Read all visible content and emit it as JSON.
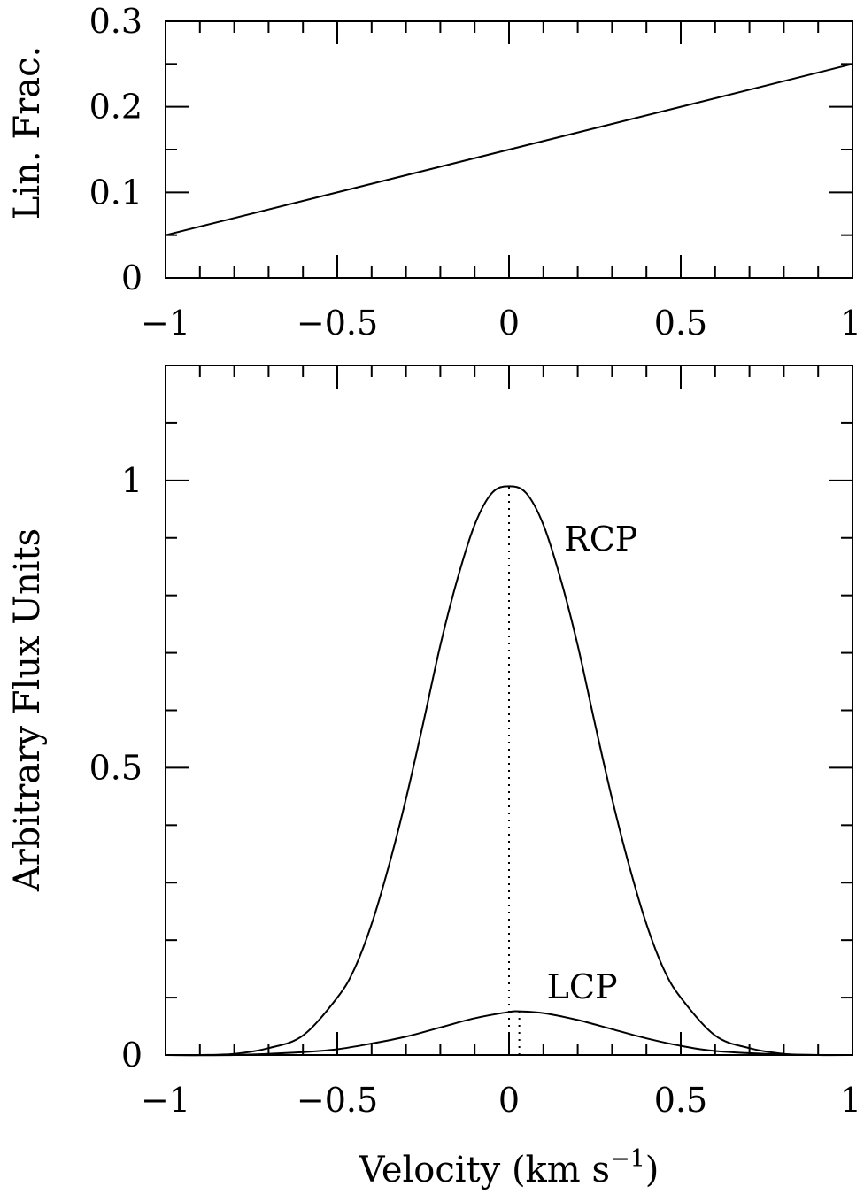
{
  "chart_data": [
    {
      "type": "line",
      "ylabel": "Lin. Frac.",
      "xlabel": "",
      "xlim": [
        -1,
        1
      ],
      "ylim": [
        0,
        0.3
      ],
      "x_ticks": [
        -1,
        -0.5,
        0,
        0.5,
        1
      ],
      "x_tick_labels": [
        "−1",
        "−0.5",
        "0",
        "0.5",
        "1"
      ],
      "y_ticks": [
        0,
        0.1,
        0.2,
        0.3
      ],
      "y_tick_labels": [
        "0",
        "0.1",
        "0.2",
        "0.3"
      ],
      "grid": false,
      "series": [
        {
          "x": [
            -1,
            1
          ],
          "y": [
            0.05,
            0.25
          ],
          "style": "solid",
          "color": "#000000"
        }
      ]
    },
    {
      "type": "line",
      "ylabel": "Arbitrary Flux Units",
      "xlabel": "Velocity (km s",
      "xlabel_superscript": "−1",
      "xlabel_suffix": ")",
      "xlim": [
        -1,
        1
      ],
      "ylim": [
        0,
        1.2
      ],
      "x_ticks": [
        -1,
        -0.5,
        0,
        0.5,
        1
      ],
      "x_tick_labels": [
        "−1",
        "−0.5",
        "0",
        "0.5",
        "1"
      ],
      "y_ticks": [
        0,
        0.5,
        1
      ],
      "y_tick_labels": [
        "0",
        "0.5",
        "1"
      ],
      "grid": false,
      "series": [
        {
          "name": "RCP",
          "x": [
            -1.0,
            -0.9,
            -0.8,
            -0.7,
            -0.6,
            -0.5,
            -0.45,
            -0.4,
            -0.35,
            -0.3,
            -0.25,
            -0.2,
            -0.15,
            -0.1,
            -0.05,
            0.0,
            0.05,
            0.1,
            0.15,
            0.2,
            0.25,
            0.3,
            0.35,
            0.4,
            0.45,
            0.5,
            0.6,
            0.7,
            0.8,
            0.9,
            1.0
          ],
          "y": [
            0.0,
            0.0,
            0.002,
            0.012,
            0.034,
            0.1,
            0.15,
            0.228,
            0.329,
            0.446,
            0.577,
            0.713,
            0.829,
            0.923,
            0.978,
            0.99,
            0.978,
            0.923,
            0.829,
            0.713,
            0.577,
            0.446,
            0.329,
            0.228,
            0.15,
            0.1,
            0.034,
            0.012,
            0.002,
            0.0,
            0.0
          ],
          "style": "solid",
          "color": "#000000"
        },
        {
          "name": "LCP",
          "x": [
            -1.0,
            -0.8,
            -0.6,
            -0.5,
            -0.4,
            -0.3,
            -0.2,
            -0.1,
            0.0,
            0.03,
            0.1,
            0.2,
            0.3,
            0.4,
            0.5,
            0.6,
            0.8,
            1.0
          ],
          "y": [
            0.0,
            0.0,
            0.005,
            0.01,
            0.02,
            0.032,
            0.048,
            0.064,
            0.075,
            0.076,
            0.073,
            0.061,
            0.045,
            0.029,
            0.016,
            0.007,
            0.001,
            0.0
          ],
          "style": "solid",
          "color": "#000000"
        }
      ],
      "reference_lines": [
        {
          "x": 0.0,
          "y_from": 0,
          "y_to": 0.99,
          "style": "dotted"
        },
        {
          "x": 0.03,
          "y_from": 0,
          "y_to": 0.076,
          "style": "dotted"
        }
      ],
      "annotations": [
        {
          "text": "RCP",
          "x": 0.16,
          "y": 0.9
        },
        {
          "text": "LCP",
          "x": 0.11,
          "y": 0.12
        }
      ]
    }
  ]
}
